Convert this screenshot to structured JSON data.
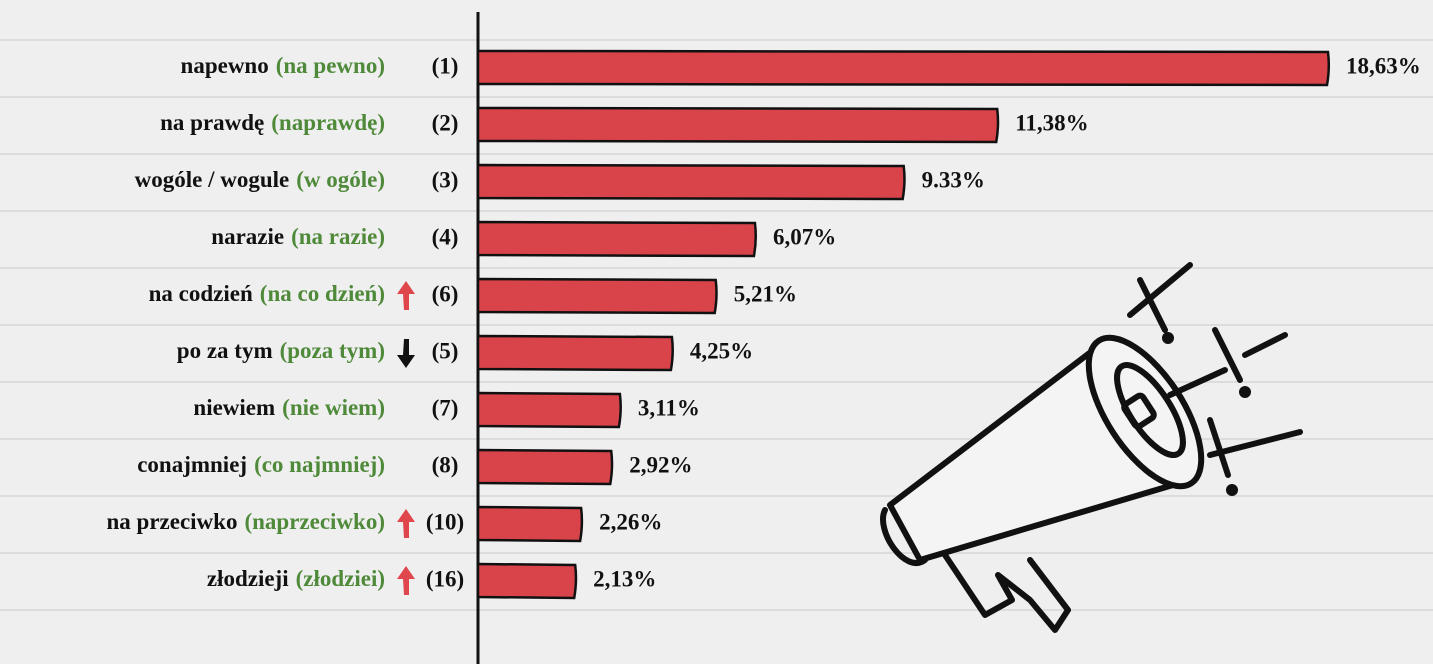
{
  "chart_data": {
    "type": "bar",
    "orientation": "horizontal",
    "categories": [
      "napewno",
      "na prawdę",
      "wogóle / wogule",
      "narazie",
      "na codzień",
      "po za tym",
      "niewiem",
      "conajmniej",
      "na przeciwko",
      "złodzieji"
    ],
    "corrections": [
      "(na pewno)",
      "(naprawdę)",
      "(w ogóle)",
      "(na razie)",
      "(na co dzień)",
      "(poza tym)",
      "(nie wiem)",
      "(co najmniej)",
      "(naprzeciwko)",
      "(złodziei)"
    ],
    "ranks": [
      "(1)",
      "(2)",
      "(3)",
      "(4)",
      "(6)",
      "(5)",
      "(7)",
      "(8)",
      "(10)",
      "(16)"
    ],
    "trend": [
      null,
      null,
      null,
      null,
      "up",
      "down",
      null,
      null,
      "up",
      "up"
    ],
    "trend_colors": {
      "up": "#e0474c",
      "down": "#111111"
    },
    "values": [
      18.63,
      11.38,
      9.33,
      6.07,
      5.21,
      4.25,
      3.11,
      2.92,
      2.26,
      2.13
    ],
    "value_labels": [
      "18,63%",
      "11,38%",
      "9.33%",
      "6,07%",
      "5,21%",
      "4,25%",
      "3,11%",
      "2,92%",
      "2,26%",
      "2,13%"
    ],
    "color": "#d9444a",
    "correction_color": "#4f8a3a"
  }
}
